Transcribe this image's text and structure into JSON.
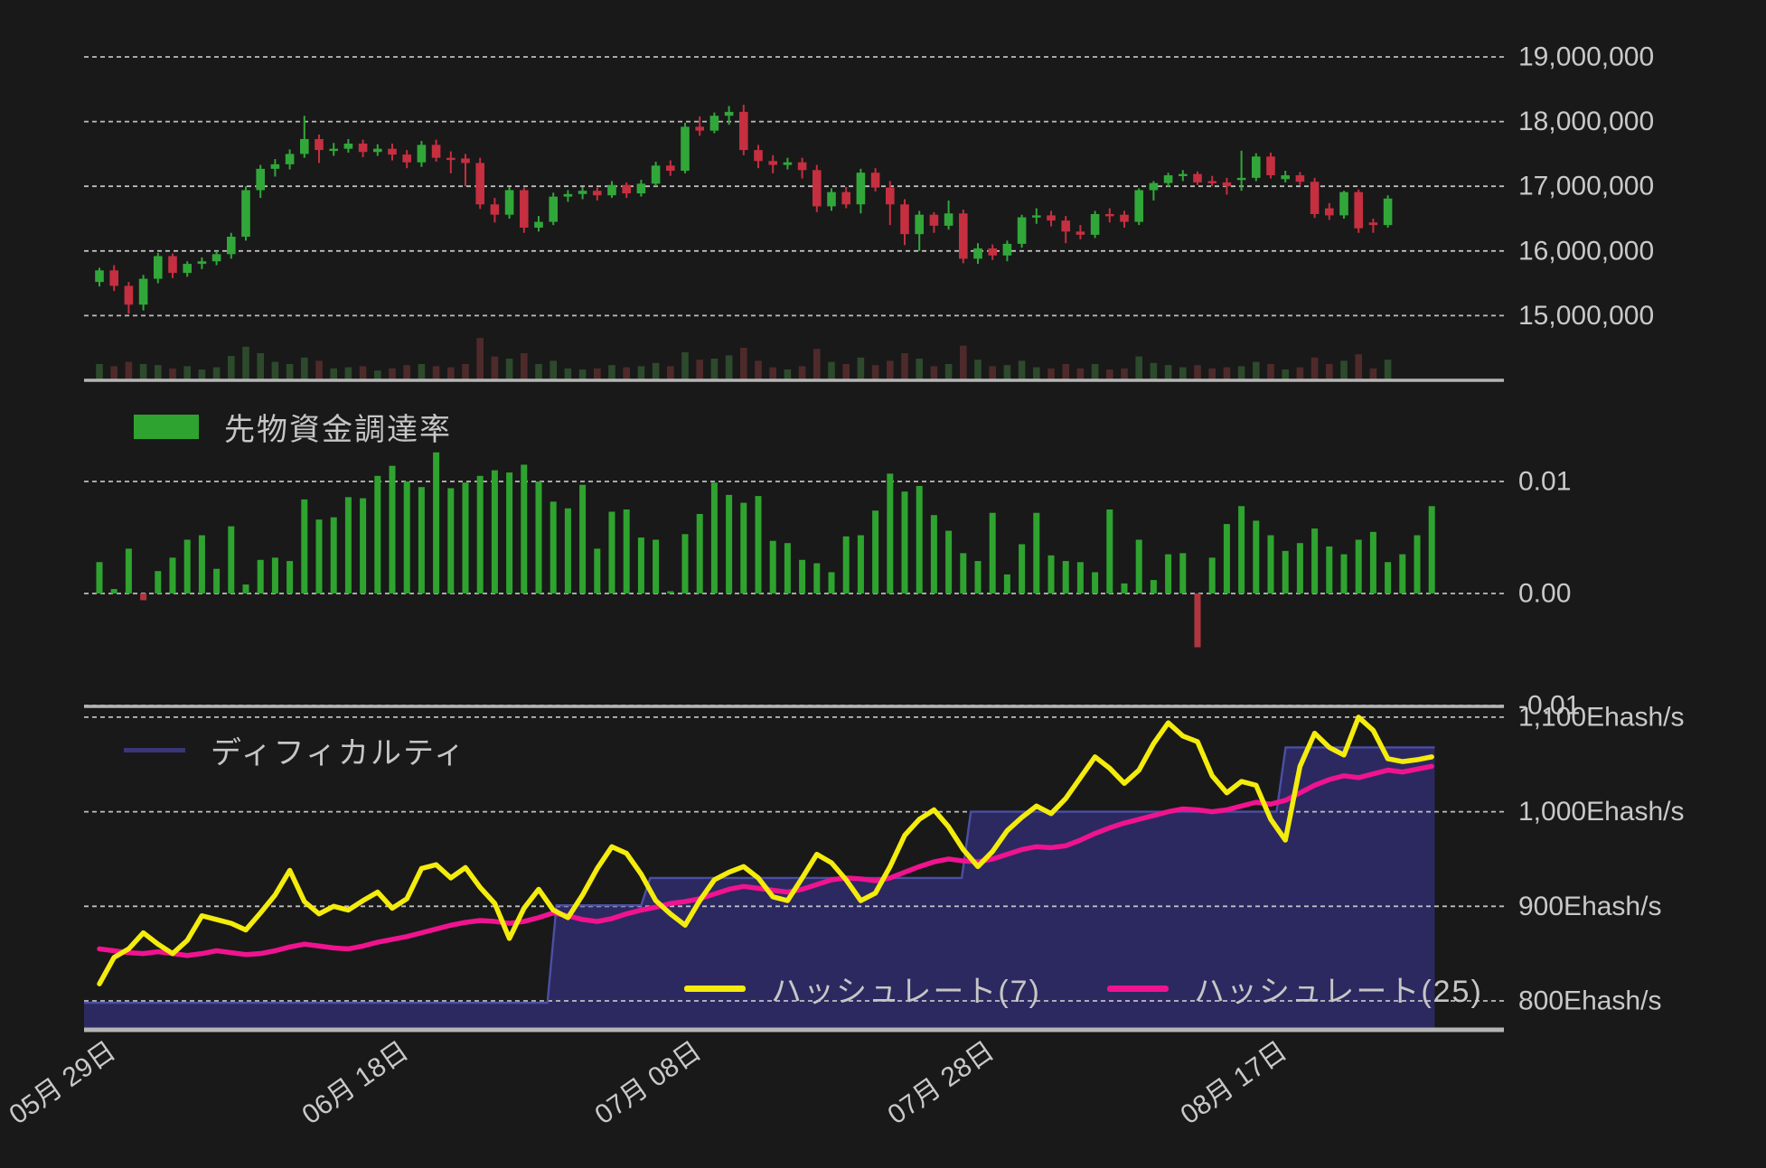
{
  "colors": {
    "background": "#191919",
    "grid_line": "#cfcfcf",
    "panel_border": "#b5b5b5",
    "axis_label": "#c9c9c9",
    "candle_up": "#31a73a",
    "candle_down": "#c52f40",
    "volume_up": "#2d4a2c",
    "volume_down": "#4f2a2a",
    "funding_positive": "#2fa32f",
    "funding_negative": "#b13540",
    "difficulty_fill": "#2c2960",
    "difficulty_edge": "#4b4fa3",
    "difficulty_legend_swatch": "#393778",
    "hash7_line": "#f4ec0c",
    "hash25_line": "#f01390"
  },
  "x_axis": {
    "labels": [
      "05月 29日",
      "06月 18日",
      "07月 08日",
      "07月 28日",
      "08月 17日"
    ],
    "tick_indices": [
      0,
      20,
      40,
      60,
      80
    ]
  },
  "chart_data": [
    {
      "type": "candlestick",
      "name": "price-panel",
      "unit": "JPY",
      "ylim_millions": [
        14,
        19
      ],
      "yticks": [
        {
          "label": "19,000,000",
          "value": 19
        },
        {
          "label": "18,000,000",
          "value": 18
        },
        {
          "label": "17,000,000",
          "value": 17
        },
        {
          "label": "16,000,000",
          "value": 16
        },
        {
          "label": "15,000,000",
          "value": 15
        },
        {
          "label": "14,000,000",
          "value": 14
        }
      ],
      "candles_ohlcv_millions": [
        [
          15.52,
          15.74,
          15.45,
          15.7,
          0.3
        ],
        [
          15.7,
          15.78,
          15.38,
          15.46,
          0.26
        ],
        [
          15.46,
          15.52,
          15.03,
          15.17,
          0.34
        ],
        [
          15.17,
          15.63,
          15.08,
          15.57,
          0.3
        ],
        [
          15.57,
          15.97,
          15.5,
          15.92,
          0.28
        ],
        [
          15.92,
          15.96,
          15.58,
          15.66,
          0.22
        ],
        [
          15.66,
          15.84,
          15.6,
          15.8,
          0.26
        ],
        [
          15.8,
          15.9,
          15.72,
          15.84,
          0.2
        ],
        [
          15.84,
          16.0,
          15.78,
          15.95,
          0.24
        ],
        [
          15.95,
          16.28,
          15.88,
          16.22,
          0.45
        ],
        [
          16.22,
          17.0,
          16.16,
          16.94,
          0.62
        ],
        [
          16.94,
          17.33,
          16.82,
          17.27,
          0.5
        ],
        [
          17.27,
          17.42,
          17.15,
          17.34,
          0.34
        ],
        [
          17.34,
          17.57,
          17.26,
          17.5,
          0.3
        ],
        [
          17.5,
          18.09,
          17.44,
          17.73,
          0.42
        ],
        [
          17.73,
          17.8,
          17.36,
          17.56,
          0.36
        ],
        [
          17.56,
          17.67,
          17.47,
          17.58,
          0.22
        ],
        [
          17.58,
          17.73,
          17.52,
          17.66,
          0.24
        ],
        [
          17.66,
          17.72,
          17.45,
          17.53,
          0.26
        ],
        [
          17.53,
          17.65,
          17.47,
          17.58,
          0.18
        ],
        [
          17.58,
          17.66,
          17.4,
          17.49,
          0.22
        ],
        [
          17.49,
          17.56,
          17.28,
          17.37,
          0.28
        ],
        [
          17.37,
          17.7,
          17.3,
          17.64,
          0.3
        ],
        [
          17.64,
          17.72,
          17.38,
          17.44,
          0.26
        ],
        [
          17.44,
          17.54,
          17.2,
          17.43,
          0.24
        ],
        [
          17.43,
          17.5,
          17.0,
          17.36,
          0.3
        ],
        [
          17.36,
          17.44,
          16.65,
          16.72,
          0.78
        ],
        [
          16.72,
          16.82,
          16.44,
          16.56,
          0.44
        ],
        [
          16.56,
          16.99,
          16.5,
          16.94,
          0.4
        ],
        [
          16.94,
          16.98,
          16.28,
          16.36,
          0.5
        ],
        [
          16.36,
          16.54,
          16.3,
          16.45,
          0.3
        ],
        [
          16.45,
          16.9,
          16.4,
          16.84,
          0.36
        ],
        [
          16.84,
          16.94,
          16.76,
          16.88,
          0.22
        ],
        [
          16.88,
          16.99,
          16.8,
          16.93,
          0.2
        ],
        [
          16.93,
          16.98,
          16.78,
          16.86,
          0.22
        ],
        [
          16.86,
          17.08,
          16.82,
          17.02,
          0.28
        ],
        [
          17.02,
          17.06,
          16.82,
          16.89,
          0.24
        ],
        [
          16.89,
          17.1,
          16.84,
          17.04,
          0.26
        ],
        [
          17.04,
          17.38,
          17.0,
          17.32,
          0.32
        ],
        [
          17.32,
          17.4,
          17.16,
          17.24,
          0.26
        ],
        [
          17.24,
          17.98,
          17.2,
          17.92,
          0.52
        ],
        [
          17.92,
          18.08,
          17.78,
          17.86,
          0.38
        ],
        [
          17.86,
          18.14,
          17.82,
          18.09,
          0.4
        ],
        [
          18.09,
          18.24,
          17.95,
          18.15,
          0.46
        ],
        [
          18.15,
          18.26,
          17.48,
          17.56,
          0.6
        ],
        [
          17.56,
          17.64,
          17.28,
          17.39,
          0.36
        ],
        [
          17.39,
          17.48,
          17.2,
          17.33,
          0.24
        ],
        [
          17.33,
          17.44,
          17.26,
          17.37,
          0.2
        ],
        [
          17.37,
          17.44,
          17.12,
          17.25,
          0.26
        ],
        [
          17.25,
          17.33,
          16.6,
          16.69,
          0.58
        ],
        [
          16.69,
          16.97,
          16.62,
          16.91,
          0.34
        ],
        [
          16.91,
          16.99,
          16.66,
          16.72,
          0.3
        ],
        [
          16.72,
          17.27,
          16.58,
          17.21,
          0.42
        ],
        [
          17.21,
          17.28,
          16.92,
          16.98,
          0.28
        ],
        [
          16.98,
          17.08,
          16.4,
          16.72,
          0.36
        ],
        [
          16.72,
          16.8,
          16.09,
          16.26,
          0.5
        ],
        [
          16.26,
          16.62,
          16.0,
          16.56,
          0.4
        ],
        [
          16.56,
          16.6,
          16.28,
          16.39,
          0.26
        ],
        [
          16.39,
          16.78,
          16.33,
          16.58,
          0.3
        ],
        [
          16.58,
          16.64,
          15.81,
          15.88,
          0.64
        ],
        [
          15.88,
          16.12,
          15.8,
          16.04,
          0.38
        ],
        [
          16.04,
          16.1,
          15.86,
          15.93,
          0.26
        ],
        [
          15.93,
          16.16,
          15.84,
          16.11,
          0.28
        ],
        [
          16.11,
          16.56,
          16.05,
          16.52,
          0.36
        ],
        [
          16.52,
          16.66,
          16.42,
          16.55,
          0.24
        ],
        [
          16.55,
          16.62,
          16.38,
          16.47,
          0.22
        ],
        [
          16.47,
          16.54,
          16.12,
          16.3,
          0.3
        ],
        [
          16.3,
          16.4,
          16.18,
          16.25,
          0.22
        ],
        [
          16.25,
          16.62,
          16.2,
          16.57,
          0.3
        ],
        [
          16.57,
          16.66,
          16.44,
          16.56,
          0.2
        ],
        [
          16.56,
          16.62,
          16.36,
          16.45,
          0.22
        ],
        [
          16.45,
          16.97,
          16.4,
          16.94,
          0.44
        ],
        [
          16.94,
          17.08,
          16.78,
          17.05,
          0.32
        ],
        [
          17.05,
          17.21,
          16.99,
          17.17,
          0.28
        ],
        [
          17.17,
          17.25,
          17.08,
          17.19,
          0.24
        ],
        [
          17.19,
          17.23,
          17.02,
          17.06,
          0.28
        ],
        [
          17.08,
          17.16,
          17.0,
          17.06,
          0.22
        ],
        [
          17.06,
          17.13,
          16.87,
          17.0,
          0.24
        ],
        [
          17.1,
          17.55,
          16.93,
          17.13,
          0.26
        ],
        [
          17.13,
          17.51,
          17.08,
          17.46,
          0.34
        ],
        [
          17.46,
          17.52,
          17.12,
          17.17,
          0.3
        ],
        [
          17.11,
          17.24,
          17.06,
          17.17,
          0.2
        ],
        [
          17.17,
          17.22,
          17.02,
          17.07,
          0.24
        ],
        [
          17.07,
          17.13,
          16.51,
          16.57,
          0.42
        ],
        [
          16.66,
          16.74,
          16.48,
          16.55,
          0.3
        ],
        [
          16.55,
          16.93,
          16.5,
          16.91,
          0.36
        ],
        [
          16.91,
          16.95,
          16.28,
          16.35,
          0.48
        ],
        [
          16.44,
          16.5,
          16.28,
          16.4,
          0.22
        ],
        [
          16.4,
          16.86,
          16.36,
          16.81,
          0.38
        ]
      ]
    },
    {
      "type": "bar",
      "name": "funding-panel",
      "legend_label": "先物資金調達率",
      "ylim": [
        -0.01,
        0.01
      ],
      "yticks": [
        {
          "label": "0.01",
          "value": 0.01
        },
        {
          "label": "0.00",
          "value": 0.0
        },
        {
          "label": "-0.01",
          "value": -0.01
        }
      ],
      "values": [
        0.0028,
        0.0004,
        0.004,
        -0.0006,
        0.002,
        0.0032,
        0.0048,
        0.0052,
        0.0022,
        0.006,
        0.0008,
        0.003,
        0.0032,
        0.0029,
        0.0084,
        0.0066,
        0.0068,
        0.0086,
        0.0085,
        0.0105,
        0.0114,
        0.01,
        0.0095,
        0.0126,
        0.0094,
        0.0099,
        0.0105,
        0.011,
        0.0108,
        0.0115,
        0.01,
        0.0082,
        0.0076,
        0.0097,
        0.004,
        0.0073,
        0.0075,
        0.005,
        0.0048,
        0.0002,
        0.0053,
        0.0071,
        0.0099,
        0.0088,
        0.0081,
        0.0087,
        0.0047,
        0.0045,
        0.003,
        0.0027,
        0.0019,
        0.0051,
        0.0052,
        0.0074,
        0.0107,
        0.0091,
        0.0096,
        0.007,
        0.0056,
        0.0036,
        0.0029,
        0.0072,
        0.0017,
        0.0044,
        0.0072,
        0.0034,
        0.0029,
        0.0028,
        0.0019,
        0.0075,
        0.0009,
        0.0048,
        0.0012,
        0.0035,
        0.0036,
        -0.0048,
        0.0032,
        0.0062,
        0.0078,
        0.0065,
        0.0052,
        0.0038,
        0.0045,
        0.0058,
        0.0042,
        0.0035,
        0.0048,
        0.0055,
        0.0028,
        0.0035,
        0.0052,
        0.0078
      ]
    },
    {
      "type": "area+line",
      "name": "hashrate-panel",
      "difficulty_legend_label": "ディフィカルティ",
      "hash7_legend_label": "ハッシュレート(7)",
      "hash25_legend_label": "ハッシュレート(25)",
      "unit": "Ehash/s",
      "ylim": [
        771,
        1115
      ],
      "yticks": [
        {
          "label": "1,100Ehash/s",
          "value": 1100
        },
        {
          "label": "1,000Ehash/s",
          "value": 1000
        },
        {
          "label": "900Ehash/s",
          "value": 900
        },
        {
          "label": "800Ehash/s",
          "value": 800
        }
      ],
      "difficulty_steps": [
        [
          0,
          798
        ],
        [
          30.6,
          901
        ],
        [
          37,
          930
        ],
        [
          58.9,
          1000
        ],
        [
          80.4,
          1068
        ]
      ],
      "difficulty_end_index": 91.2,
      "hash7": [
        818,
        846,
        855,
        872,
        860,
        850,
        864,
        890,
        886,
        882,
        875,
        893,
        912,
        938,
        905,
        892,
        900,
        896,
        906,
        915,
        898,
        908,
        940,
        944,
        930,
        941,
        920,
        903,
        866,
        898,
        918,
        896,
        888,
        912,
        940,
        963,
        956,
        934,
        906,
        892,
        880,
        906,
        928,
        936,
        942,
        930,
        910,
        906,
        930,
        955,
        946,
        928,
        906,
        914,
        942,
        975,
        992,
        1002,
        984,
        960,
        942,
        958,
        980,
        994,
        1006,
        998,
        1014,
        1036,
        1058,
        1046,
        1030,
        1044,
        1072,
        1094,
        1080,
        1074,
        1038,
        1020,
        1032,
        1028,
        992,
        970,
        1048,
        1083,
        1068,
        1060,
        1100,
        1086,
        1056,
        1053,
        1055,
        1058
      ],
      "hash25": [
        855,
        853,
        851,
        850,
        852,
        850,
        848,
        850,
        853,
        851,
        849,
        850,
        853,
        857,
        860,
        858,
        856,
        855,
        858,
        862,
        865,
        868,
        872,
        876,
        880,
        883,
        885,
        884,
        882,
        884,
        888,
        893,
        890,
        886,
        884,
        887,
        892,
        896,
        899,
        903,
        905,
        908,
        913,
        918,
        921,
        919,
        917,
        915,
        918,
        923,
        928,
        930,
        929,
        927,
        930,
        936,
        942,
        947,
        950,
        948,
        947,
        950,
        955,
        960,
        963,
        962,
        964,
        970,
        977,
        983,
        988,
        992,
        996,
        1000,
        1003,
        1002,
        1000,
        1002,
        1006,
        1010,
        1008,
        1012,
        1020,
        1028,
        1034,
        1038,
        1036,
        1040,
        1044,
        1042,
        1045,
        1048
      ]
    }
  ]
}
